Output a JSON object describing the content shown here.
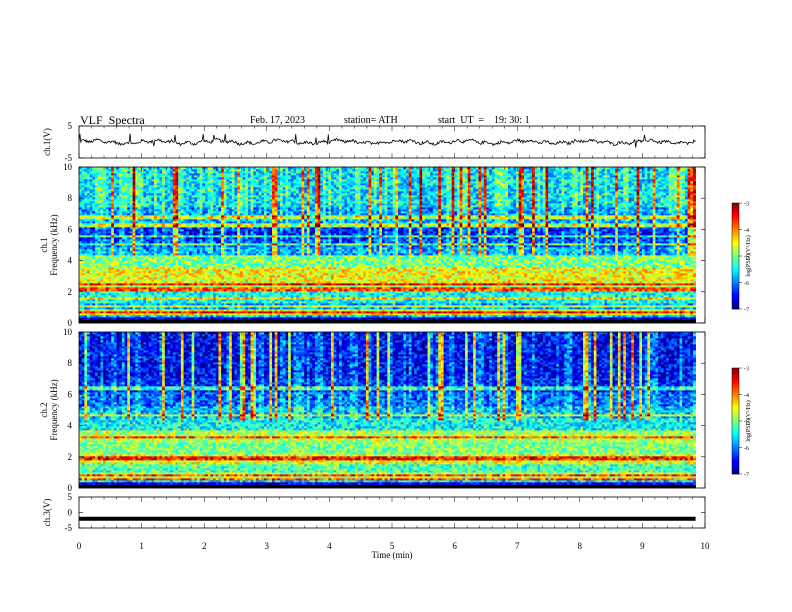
{
  "header": {
    "title": "VLF  Spectra",
    "date": "Feb. 17, 2023",
    "station": "station= ATH",
    "start": "start  UT  =    19: 30: 1"
  },
  "chart_data": [
    {
      "type": "line",
      "panel": "ch1-waveform",
      "ylabel": "ch.1(V)",
      "ylim": [
        -5,
        5
      ],
      "yticks": [
        "5",
        "-5"
      ],
      "xlim": [
        0,
        10
      ],
      "x_end": 9.85,
      "baseline": 0
    },
    {
      "type": "heatmap",
      "panel": "ch1-spectrogram",
      "ylabel_top": "ch.1",
      "ylabel": "Frequency (kHz)",
      "ylim": [
        0,
        10
      ],
      "yticks": [
        "0",
        "2",
        "4",
        "6",
        "8",
        "10"
      ],
      "xlim": [
        0,
        10
      ],
      "x_end": 9.85,
      "bands": [
        {
          "f0": 0.0,
          "f1": 0.45,
          "level": 0.05
        },
        {
          "f0": 0.45,
          "f1": 0.85,
          "level": 0.62
        },
        {
          "f0": 0.85,
          "f1": 1.3,
          "level": 0.3
        },
        {
          "f0": 1.3,
          "f1": 2.0,
          "level": 0.4
        },
        {
          "f0": 2.0,
          "f1": 2.4,
          "level": 0.55
        },
        {
          "f0": 2.4,
          "f1": 3.6,
          "level": 0.62
        },
        {
          "f0": 3.6,
          "f1": 4.3,
          "level": 0.5
        },
        {
          "f0": 4.3,
          "f1": 4.9,
          "level": 0.28
        },
        {
          "f0": 4.9,
          "f1": 5.4,
          "level": 0.2
        },
        {
          "f0": 5.4,
          "f1": 6.1,
          "level": 0.15
        },
        {
          "f0": 6.1,
          "f1": 7.4,
          "level": 0.28
        },
        {
          "f0": 7.4,
          "f1": 10.0,
          "level": 0.35
        }
      ],
      "lines_khz": [
        0.45,
        0.7,
        1.1,
        1.6,
        2.2,
        2.5,
        5.1,
        5.6,
        6.3,
        6.8
      ]
    },
    {
      "type": "heatmap",
      "panel": "ch2-spectrogram",
      "ylabel_top": "ch.2",
      "ylabel": "Frequency (kHz)",
      "ylim": [
        0,
        10
      ],
      "yticks": [
        "0",
        "2",
        "4",
        "6",
        "8",
        "10"
      ],
      "xlim": [
        0,
        10
      ],
      "x_end": 9.85,
      "bands": [
        {
          "f0": 0.0,
          "f1": 0.5,
          "level": 0.1
        },
        {
          "f0": 0.5,
          "f1": 1.0,
          "level": 0.55
        },
        {
          "f0": 1.0,
          "f1": 1.6,
          "level": 0.45
        },
        {
          "f0": 1.6,
          "f1": 2.2,
          "level": 0.6
        },
        {
          "f0": 2.2,
          "f1": 3.0,
          "level": 0.5
        },
        {
          "f0": 3.0,
          "f1": 3.7,
          "level": 0.55
        },
        {
          "f0": 3.7,
          "f1": 4.5,
          "level": 0.38
        },
        {
          "f0": 4.5,
          "f1": 5.3,
          "level": 0.3
        },
        {
          "f0": 5.3,
          "f1": 6.2,
          "level": 0.22
        },
        {
          "f0": 6.2,
          "f1": 7.0,
          "level": 0.15
        },
        {
          "f0": 7.0,
          "f1": 10.0,
          "level": 0.12
        }
      ],
      "lines_khz": [
        0.5,
        0.8,
        1.9,
        2.0,
        3.3,
        4.7,
        6.4
      ]
    },
    {
      "type": "line",
      "panel": "ch3-waveform",
      "ylabel": "ch.3(V)",
      "ylim": [
        -5,
        5
      ],
      "yticks": [
        "5",
        "0",
        "-5"
      ],
      "xlim": [
        0,
        10
      ],
      "x_end": 9.85,
      "baseline": -2,
      "xlabel": "Time  (min)",
      "xticks": [
        "0",
        "1",
        "2",
        "3",
        "4",
        "5",
        "6",
        "7",
        "8",
        "9",
        "10"
      ]
    },
    {
      "type": "colorbar",
      "label": "log(PSD)(V²/Hz)",
      "range": [
        -7,
        -3
      ],
      "ticks": [
        "-3",
        "-4",
        "-5",
        "-6",
        "-7"
      ]
    }
  ]
}
